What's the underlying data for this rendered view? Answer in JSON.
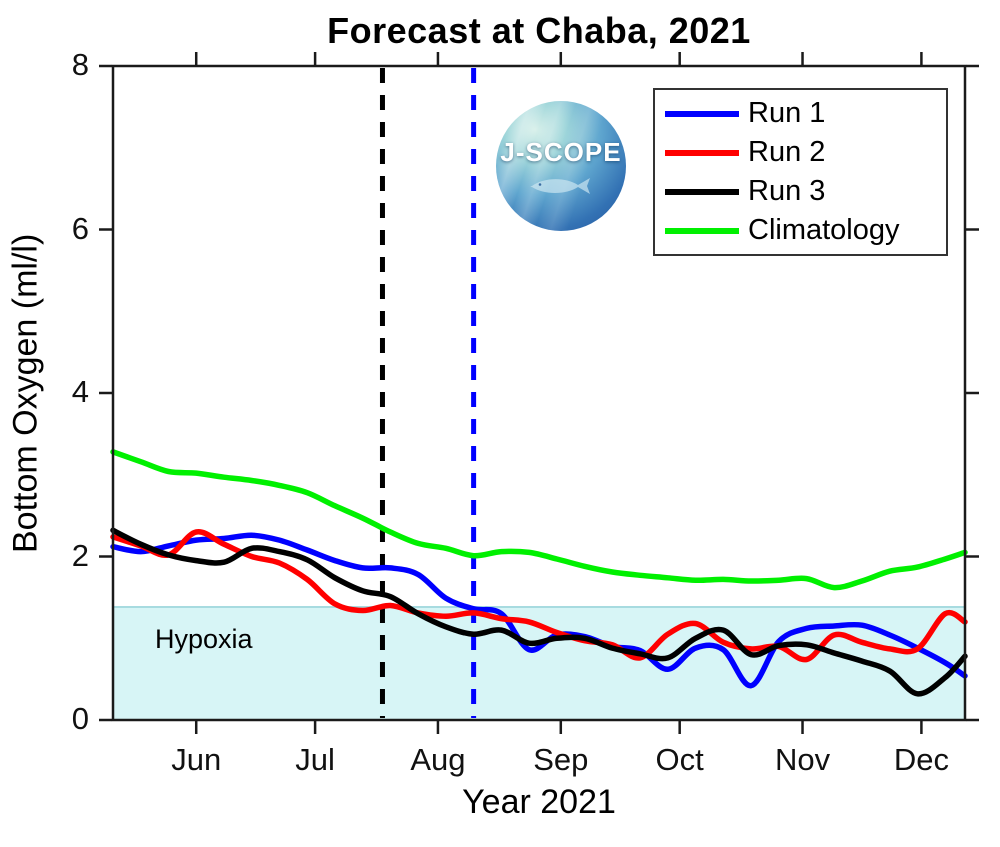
{
  "logo": {
    "text": "J-SCOPE"
  },
  "chart_data": {
    "type": "line",
    "title": "Forecast at Chaba, 2021",
    "xlabel": "Year 2021",
    "ylabel": "Bottom Oxygen (ml/l)",
    "ylim": [
      0,
      8
    ],
    "y_ticks": [
      0,
      2,
      4,
      6,
      8
    ],
    "grid": false,
    "axis_color": "#1a1a1a",
    "x_axis": {
      "start_date": "May 11, 2021",
      "end_date": "Dec 12, 2021",
      "span_days": 215,
      "tick_labels": [
        "Jun",
        "Jul",
        "Aug",
        "Sep",
        "Oct",
        "Nov",
        "Dec"
      ],
      "tick_days": [
        21,
        51,
        82,
        113,
        143,
        174,
        204
      ]
    },
    "x_dates": [
      "May 11",
      "May 18",
      "May 25",
      "Jun 1",
      "Jun 8",
      "Jun 15",
      "Jun 22",
      "Jun 29",
      "Jul 6",
      "Jul 13",
      "Jul 20",
      "Jul 27",
      "Aug 3",
      "Aug 10",
      "Aug 17",
      "Aug 24",
      "Aug 31",
      "Sep 7",
      "Sep 14",
      "Sep 21",
      "Sep 28",
      "Oct 5",
      "Oct 12",
      "Oct 19",
      "Oct 26",
      "Nov 2",
      "Nov 9",
      "Nov 16",
      "Nov 23",
      "Nov 30",
      "Dec 7",
      "Dec 12"
    ],
    "x_days": [
      0,
      7,
      14,
      21,
      28,
      35,
      42,
      49,
      56,
      63,
      70,
      77,
      84,
      91,
      98,
      105,
      112,
      119,
      126,
      133,
      140,
      147,
      154,
      161,
      168,
      175,
      182,
      189,
      196,
      203,
      210,
      215
    ],
    "series": [
      {
        "name": "Run 1",
        "color": "#0000ff",
        "values": [
          2.12,
          2.06,
          2.13,
          2.2,
          2.22,
          2.26,
          2.2,
          2.08,
          1.95,
          1.86,
          1.86,
          1.78,
          1.49,
          1.36,
          1.3,
          0.86,
          1.04,
          1.02,
          0.9,
          0.85,
          0.62,
          0.88,
          0.86,
          0.42,
          0.96,
          1.12,
          1.15,
          1.16,
          1.04,
          0.88,
          0.7,
          0.54
        ]
      },
      {
        "name": "Run 2",
        "color": "#ff0000",
        "values": [
          2.24,
          2.13,
          2.02,
          2.3,
          2.15,
          2.0,
          1.92,
          1.72,
          1.42,
          1.34,
          1.4,
          1.31,
          1.27,
          1.31,
          1.24,
          1.2,
          1.07,
          0.97,
          0.92,
          0.76,
          1.05,
          1.18,
          0.95,
          0.87,
          0.9,
          0.74,
          1.04,
          0.95,
          0.87,
          0.87,
          1.3,
          1.2
        ]
      },
      {
        "name": "Run 3",
        "color": "#000000",
        "values": [
          2.32,
          2.15,
          2.02,
          1.95,
          1.93,
          2.1,
          2.06,
          1.96,
          1.74,
          1.58,
          1.51,
          1.3,
          1.14,
          1.05,
          1.1,
          0.94,
          1.0,
          1.0,
          0.88,
          0.81,
          0.76,
          1.0,
          1.1,
          0.8,
          0.91,
          0.92,
          0.82,
          0.72,
          0.6,
          0.32,
          0.52,
          0.78
        ]
      },
      {
        "name": "Climatology",
        "color": "#00f000",
        "values": [
          3.28,
          3.16,
          3.04,
          3.02,
          2.97,
          2.93,
          2.87,
          2.78,
          2.62,
          2.47,
          2.3,
          2.16,
          2.1,
          2.01,
          2.06,
          2.05,
          1.97,
          1.88,
          1.81,
          1.77,
          1.74,
          1.71,
          1.72,
          1.7,
          1.71,
          1.73,
          1.62,
          1.7,
          1.82,
          1.87,
          1.97,
          2.05
        ]
      }
    ],
    "hypoxia": {
      "label": "Hypoxia",
      "threshold": 1.4,
      "fill_color": "#d7f5f6"
    },
    "annotations": {
      "dashed_lines": [
        {
          "color": "#000000",
          "day": 68,
          "date_approx": "Jul 18"
        },
        {
          "color": "#0000ff",
          "day": 91,
          "date_approx": "Aug 10"
        }
      ]
    },
    "legend": {
      "position": "top-right",
      "entries": [
        "Run 1",
        "Run 2",
        "Run 3",
        "Climatology"
      ]
    }
  }
}
